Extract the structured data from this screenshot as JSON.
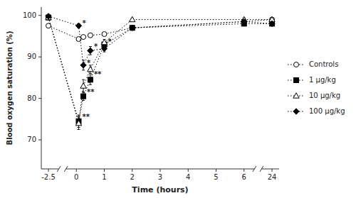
{
  "chart_data": {
    "type": "line",
    "xlabel": "Time (hours)",
    "ylabel": "Blood oxygen saturation (%)",
    "x": [
      -2.5,
      0.083,
      0.25,
      0.5,
      1.0,
      2.0,
      6.0,
      24.0
    ],
    "series": [
      {
        "name": "Controls",
        "color": "black",
        "marker": "circle-open",
        "line_style": "dotted",
        "values": [
          97.5,
          94.3,
          94.8,
          95.2,
          95.5,
          97.0,
          98.5,
          99.0
        ],
        "errors": [
          0.4,
          0.4,
          0.4,
          0.4,
          0.4,
          0.4,
          0.4,
          0.4
        ]
      },
      {
        "name": "1 µg/kg",
        "color": "black",
        "marker": "square",
        "line_style": "dotted",
        "values": [
          99.5,
          74.5,
          80.5,
          84.5,
          93.0,
          97.0,
          98.0,
          98.0
        ],
        "errors": [
          0.3,
          1.5,
          1.0,
          1.2,
          0.7,
          0.5,
          0.5,
          0.5
        ]
      },
      {
        "name": "10 µg/kg",
        "color": "black",
        "marker": "triangle-open",
        "line_style": "dotted",
        "values": [
          99.5,
          74.0,
          83.0,
          87.0,
          93.5,
          99.0,
          99.0,
          99.0
        ],
        "errors": [
          0.3,
          1.5,
          1.5,
          1.0,
          0.7,
          0.3,
          0.4,
          0.4
        ]
      },
      {
        "name": "100 µg/kg",
        "color": "black",
        "marker": "diamond",
        "line_style": "dotted",
        "values": [
          99.8,
          97.5,
          88.0,
          91.5,
          92.0,
          97.0,
          98.5,
          98.0
        ],
        "errors": [
          0.2,
          0.5,
          1.2,
          1.0,
          0.8,
          0.5,
          0.5,
          0.5
        ]
      }
    ],
    "annotations": [
      {
        "x": 0.083,
        "y": 98.0,
        "text": "*"
      },
      {
        "x": 0.25,
        "y": 88.5,
        "text": "*"
      },
      {
        "x": 0.5,
        "y": 92.5,
        "text": "*"
      },
      {
        "x": 0.25,
        "y": 81.5,
        "text": "**"
      },
      {
        "x": 0.5,
        "y": 85.7,
        "text": "**"
      },
      {
        "x": 1.0,
        "y": 93.7,
        "text": "*"
      },
      {
        "x": 0.083,
        "y": 75.5,
        "text": "**"
      }
    ],
    "xlim": [
      -2.5,
      24
    ],
    "xticks": [
      -2.5,
      0,
      1,
      2,
      3,
      4,
      5,
      6,
      24
    ],
    "ylim": [
      63,
      102
    ],
    "yticks": [
      70,
      80,
      90,
      100
    ],
    "grid": false,
    "legend": "right"
  }
}
